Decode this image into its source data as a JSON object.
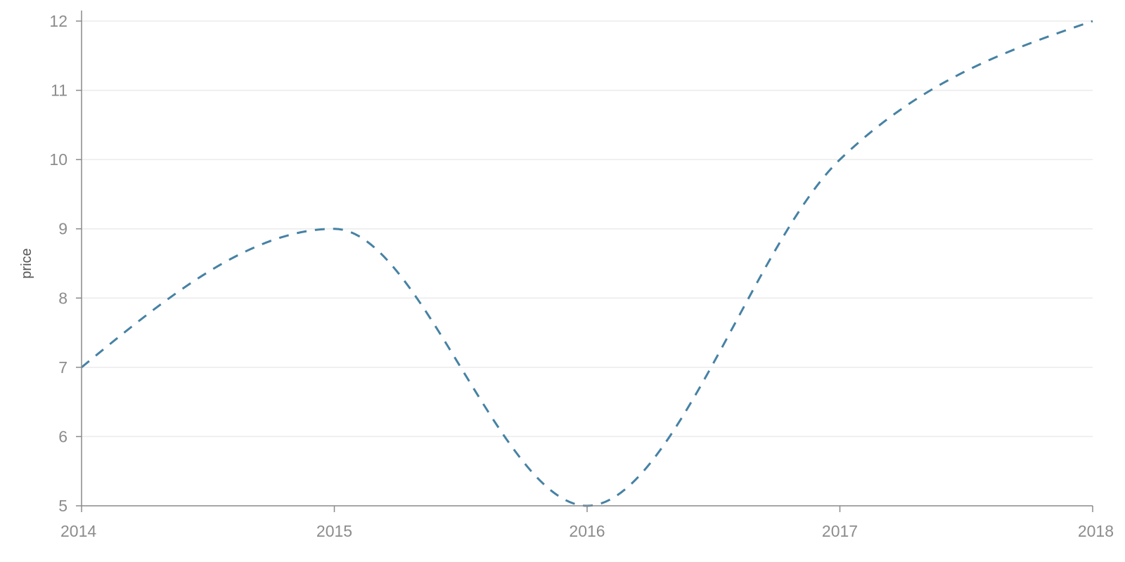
{
  "chart_data": {
    "type": "line",
    "x": [
      "2014",
      "2015",
      "2016",
      "2017",
      "2018"
    ],
    "series": [
      {
        "values": [
          7,
          9,
          5,
          10,
          12
        ],
        "color": "#4682a4",
        "style": "dashed"
      }
    ],
    "xlabel": "",
    "ylabel": "price",
    "xlim": [
      "2014",
      "2018"
    ],
    "ylim": [
      5,
      12
    ],
    "yticks": [
      5,
      6,
      7,
      8,
      9,
      10,
      11,
      12
    ],
    "xticks": [
      "2014",
      "2015",
      "2016",
      "2017",
      "2018"
    ],
    "grid": {
      "horizontal": true,
      "vertical": false
    },
    "colors": {
      "grid": "#ebebeb",
      "axis": "#8a8a8a",
      "tick_label": "#8c8c8c"
    }
  }
}
